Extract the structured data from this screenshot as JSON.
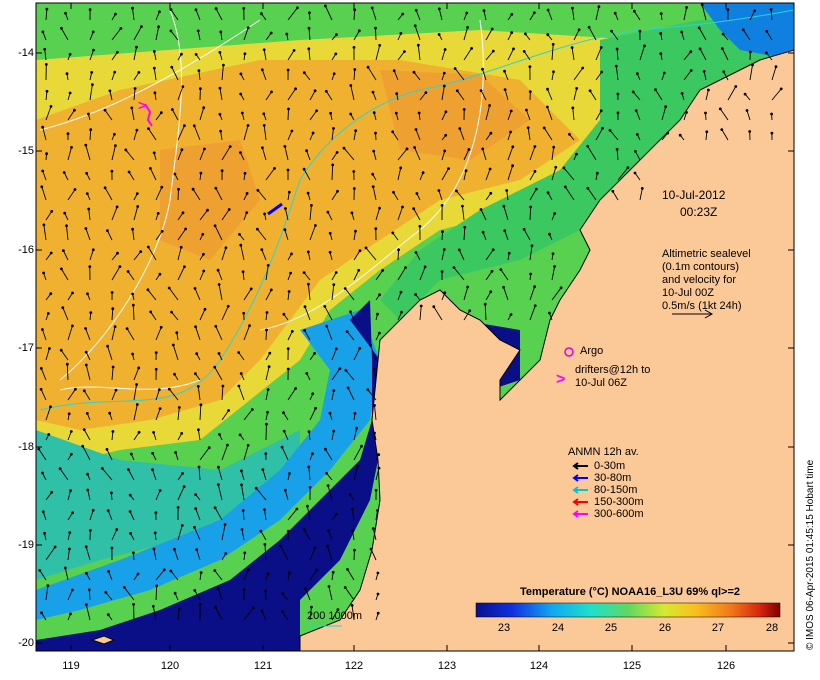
{
  "map": {
    "x_ticks": [
      "119",
      "120",
      "121",
      "122",
      "123",
      "124",
      "125",
      "126"
    ],
    "y_ticks": [
      "-14",
      "-15",
      "-16",
      "-17",
      "-18",
      "-19",
      "-20"
    ],
    "colors": {
      "land": "#fbc898",
      "deep_blue": "#0a0f88",
      "coast_line": "#000000",
      "contour": "#ffffff",
      "bathy": "#26d6d6"
    }
  },
  "annotations": {
    "date": "10-Jul-2012",
    "time": "00:23Z",
    "altimetry_1": "Altimetric sealevel",
    "altimetry_2": "(0.1m contours)",
    "altimetry_3": "and velocity for",
    "altimetry_4": "10-Jul 00Z",
    "altimetry_5": "0.5m/s (1kt 24h)",
    "argo": "Argo",
    "drifters_1": "drifters@12h to",
    "drifters_2": "10-Jul 06Z",
    "scale": "200  1000m"
  },
  "anmn": {
    "title": "ANMN 12h av.",
    "rows": [
      {
        "label": "0-30m",
        "color": "#000000"
      },
      {
        "label": "30-80m",
        "color": "#0000ff"
      },
      {
        "label": "80-150m",
        "color": "#00c8c8"
      },
      {
        "label": "150-300m",
        "color": "#ff0000"
      },
      {
        "label": "300-600m",
        "color": "#ff00ff"
      }
    ]
  },
  "colorbar": {
    "title": "Temperature (°C) NOAA16_L3U 69% ql>=2",
    "ticks": [
      "23",
      "24",
      "25",
      "26",
      "27",
      "28"
    ]
  },
  "credit": "© IMOS 06-Apr-2015 01:45:15 Hobart time"
}
